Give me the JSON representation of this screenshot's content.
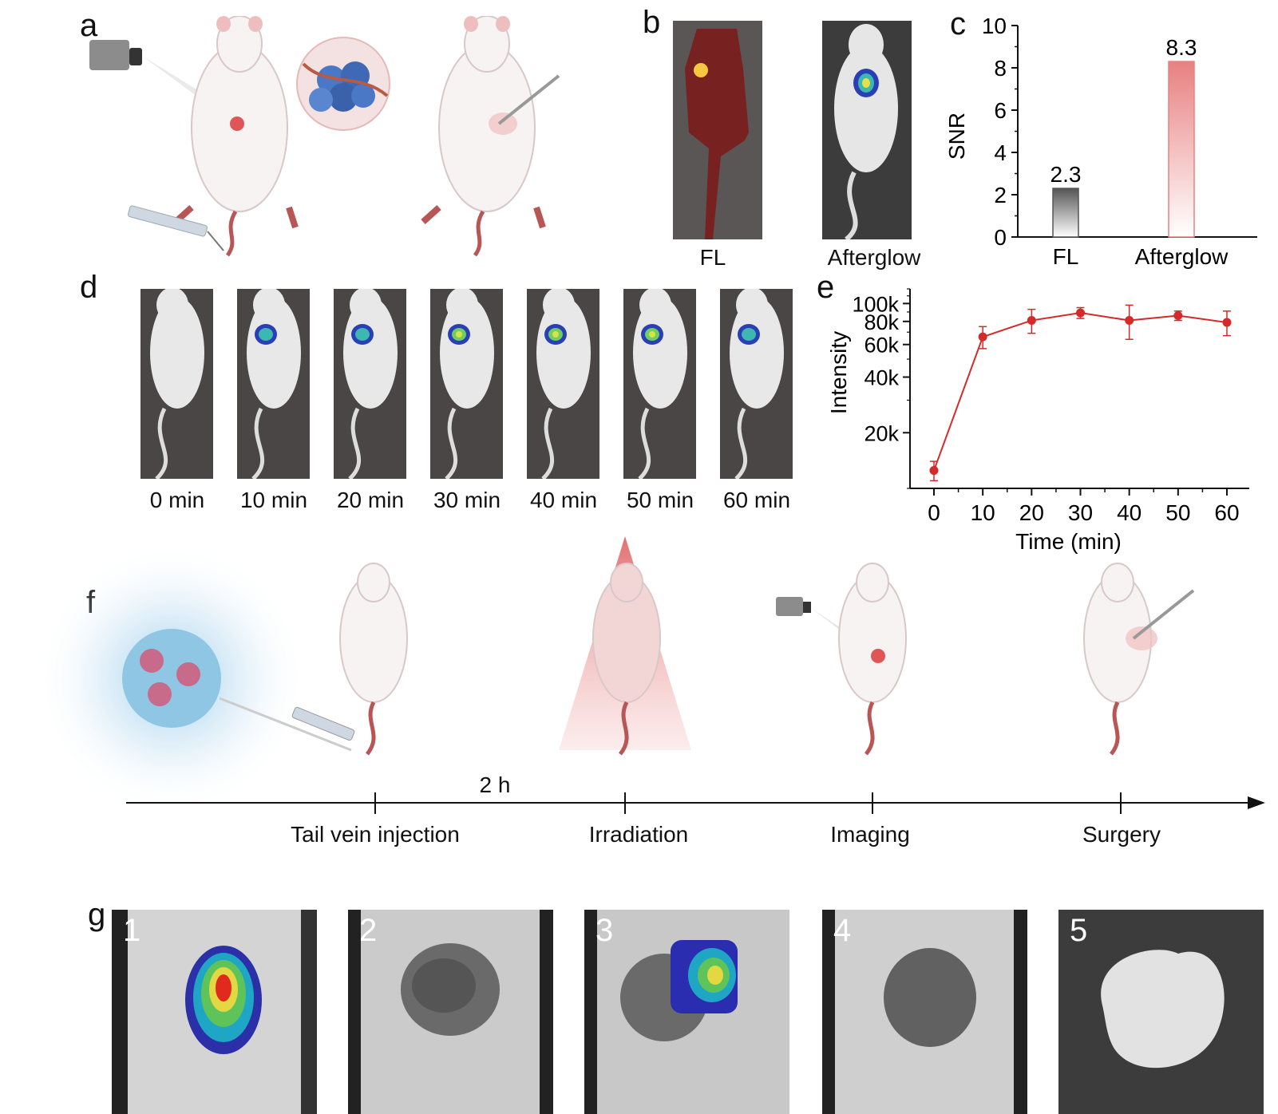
{
  "panels": {
    "a": {
      "letter": "a"
    },
    "b": {
      "letter": "b",
      "labels": [
        "FL",
        "Afterglow"
      ]
    },
    "c": {
      "letter": "c"
    },
    "d": {
      "letter": "d",
      "times": [
        "0 min",
        "10 min",
        "20 min",
        "30 min",
        "40 min",
        "50 min",
        "60 min"
      ]
    },
    "e": {
      "letter": "e"
    },
    "f": {
      "letter": "f",
      "gap_label": "2 h",
      "steps": [
        "Tail vein injection",
        "Irradiation",
        "Imaging",
        "Surgery"
      ]
    },
    "g": {
      "letter": "g",
      "numbers": [
        "1",
        "2",
        "3",
        "4",
        "5"
      ]
    }
  },
  "chart_data": [
    {
      "type": "bar",
      "categories": [
        "FL",
        "Afterglow"
      ],
      "values": [
        2.3,
        8.3
      ],
      "data_labels": [
        "2.3",
        "8.3"
      ],
      "ylabel": "SNR",
      "ylim": [
        0,
        10
      ],
      "yticks": [
        "0",
        "2",
        "4",
        "6",
        "8",
        "10"
      ],
      "colors": [
        "#555555",
        "#e88080"
      ]
    },
    {
      "type": "line",
      "x": [
        0,
        10,
        20,
        30,
        40,
        50,
        60
      ],
      "y": [
        12500,
        66000,
        81000,
        89000,
        81000,
        86000,
        79000
      ],
      "y_err": [
        1500,
        9000,
        12000,
        6000,
        17000,
        5000,
        12000
      ],
      "xlabel": "Time (min)",
      "ylabel": "Intensity",
      "xticks": [
        "0",
        "10",
        "20",
        "30",
        "40",
        "50",
        "60"
      ],
      "yticks": [
        "20k",
        "40k",
        "60k",
        "80k",
        "100k"
      ],
      "ytick_values": [
        20000,
        40000,
        60000,
        80000,
        100000
      ],
      "ylim": [
        10000,
        120000
      ],
      "yscale": "log",
      "color": "#d42a2a"
    }
  ]
}
